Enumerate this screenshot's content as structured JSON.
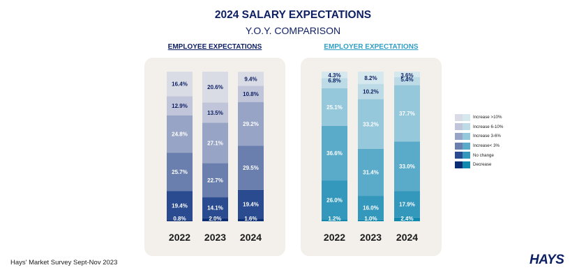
{
  "header": {
    "title": "2024 SALARY EXPECTATIONS",
    "subtitle": "Y.O.Y. COMPARISON"
  },
  "footer": {
    "source": "Hays' Market Survey Sept-Nov 2023",
    "logo": "HAYS"
  },
  "legend": {
    "labels": [
      "Increase >10%",
      "Increase 6-10%",
      "Increase 3-6%",
      "Increase< 3%",
      "No change",
      "Decrease"
    ]
  },
  "colors": {
    "employee": [
      "#0a2d74",
      "#2a4b8f",
      "#6a7fae",
      "#97a4c5",
      "#c0c5d9",
      "#d9dbe5"
    ],
    "employer": [
      "#1188ad",
      "#3498bd",
      "#5aaac9",
      "#96c8db",
      "#bcdbe6",
      "#d4e8ee"
    ],
    "title": "#0d1f63",
    "employer_title": "#2f9ec5",
    "panel": "#f3efeb"
  },
  "chart_data": [
    {
      "type": "bar",
      "stacked": true,
      "title": "EMPLOYEE EXPECTATIONS",
      "categories": [
        "2022",
        "2023",
        "2024"
      ],
      "series": [
        {
          "name": "Decrease",
          "values": [
            0.8,
            2.0,
            1.6
          ]
        },
        {
          "name": "No change",
          "values": [
            19.4,
            14.1,
            19.4
          ]
        },
        {
          "name": "Increase< 3%",
          "values": [
            25.7,
            22.7,
            29.5
          ]
        },
        {
          "name": "Increase 3-6%",
          "values": [
            24.8,
            27.1,
            29.2
          ]
        },
        {
          "name": "Increase 6-10%",
          "values": [
            12.9,
            13.5,
            10.8
          ]
        },
        {
          "name": "Increase >10%",
          "values": [
            16.4,
            20.6,
            9.4
          ]
        }
      ],
      "ylim": [
        0,
        100
      ]
    },
    {
      "type": "bar",
      "stacked": true,
      "title": "EMPLOYER EXPECTATIONS",
      "categories": [
        "2022",
        "2023",
        "2024"
      ],
      "series": [
        {
          "name": "Decrease",
          "values": [
            1.2,
            1.0,
            2.4
          ]
        },
        {
          "name": "No change",
          "values": [
            26.0,
            16.0,
            17.9
          ]
        },
        {
          "name": "Increase< 3%",
          "values": [
            36.6,
            31.4,
            33.0
          ]
        },
        {
          "name": "Increase 3-6%",
          "values": [
            25.1,
            33.2,
            37.7
          ]
        },
        {
          "name": "Increase 6-10%",
          "values": [
            6.8,
            10.2,
            5.4
          ]
        },
        {
          "name": "Increase >10%",
          "values": [
            4.3,
            8.2,
            3.6
          ]
        }
      ],
      "ylim": [
        0,
        100
      ]
    }
  ]
}
